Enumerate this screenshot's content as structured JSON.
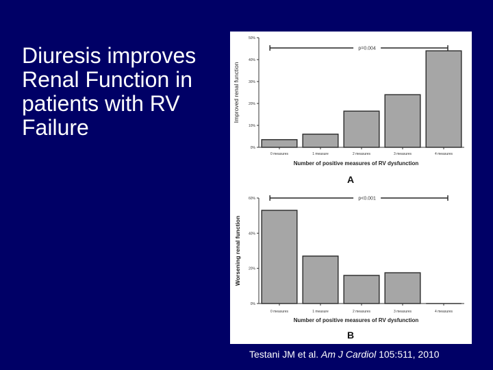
{
  "slide": {
    "title_lines": [
      "Diuresis improves",
      "Renal Function in",
      "patients with RV",
      "Failure"
    ],
    "citation": {
      "authors": "Testani JM et al. ",
      "journal": "Am J Cardiol",
      "ref": " 105:511, 2010"
    }
  },
  "colors": {
    "background": "#000066",
    "text": "#ffffff",
    "bar_fill": "#a6a6a6",
    "bar_stroke": "#333333"
  },
  "chart_data": [
    {
      "type": "bar",
      "panel_label": "A",
      "categories": [
        "0 measures",
        "1 measure",
        "2 measures",
        "3 measures",
        "4 measures"
      ],
      "values": [
        3.5,
        6,
        16.5,
        24,
        44
      ],
      "ylabel": "Improved renal function",
      "xlabel": "Number of positive measures of RV dysfunction",
      "yticks": [
        "0%",
        "10%",
        "20%",
        "30%",
        "40%",
        "50%"
      ],
      "ylim": [
        0,
        50
      ],
      "annotation": "p=0.004",
      "bracket_range_values": [
        1,
        47
      ]
    },
    {
      "type": "bar",
      "panel_label": "B",
      "categories": [
        "0 measures",
        "1 measure",
        "2 measures",
        "3 measures",
        "4 measures"
      ],
      "values": [
        53,
        27,
        16,
        17.5,
        0
      ],
      "ylabel": "Worsening renal function",
      "xlabel": "Number of positive measures of RV dysfunction",
      "yticks": [
        "0%",
        "20%",
        "40%",
        "60%"
      ],
      "ylim": [
        0,
        60
      ],
      "annotation": "p<0.001",
      "bracket_range_values": [
        1,
        60
      ]
    }
  ]
}
